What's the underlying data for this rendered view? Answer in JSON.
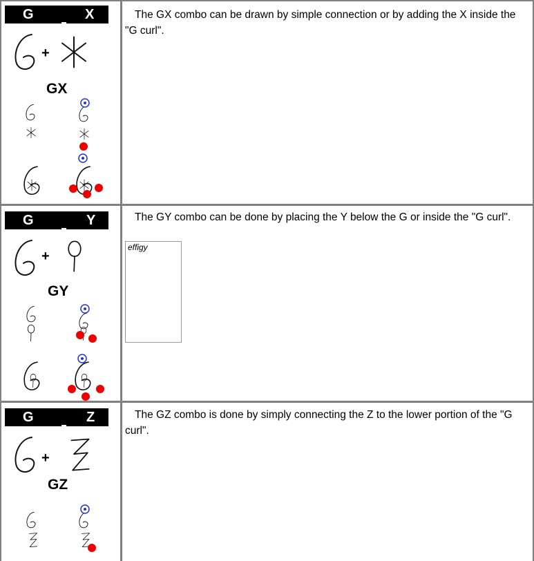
{
  "rows": [
    {
      "left": "G",
      "right": "X",
      "plus": "+",
      "combo": "GX",
      "text": "The GX combo can be drawn by simple connection or by adding the X inside the \"G curl\"."
    },
    {
      "left": "G",
      "right": "Y",
      "plus": "+",
      "combo": "GY",
      "text": "The GY combo can be done by placing the Y below the G or inside the \"G curl\".",
      "figure_caption": "effigy"
    },
    {
      "left": "G",
      "right": "Z",
      "plus": "+",
      "combo": "GZ",
      "text": "The GZ combo is done by simply connecting the Z to the lower portion of the \"G curl\"."
    }
  ]
}
